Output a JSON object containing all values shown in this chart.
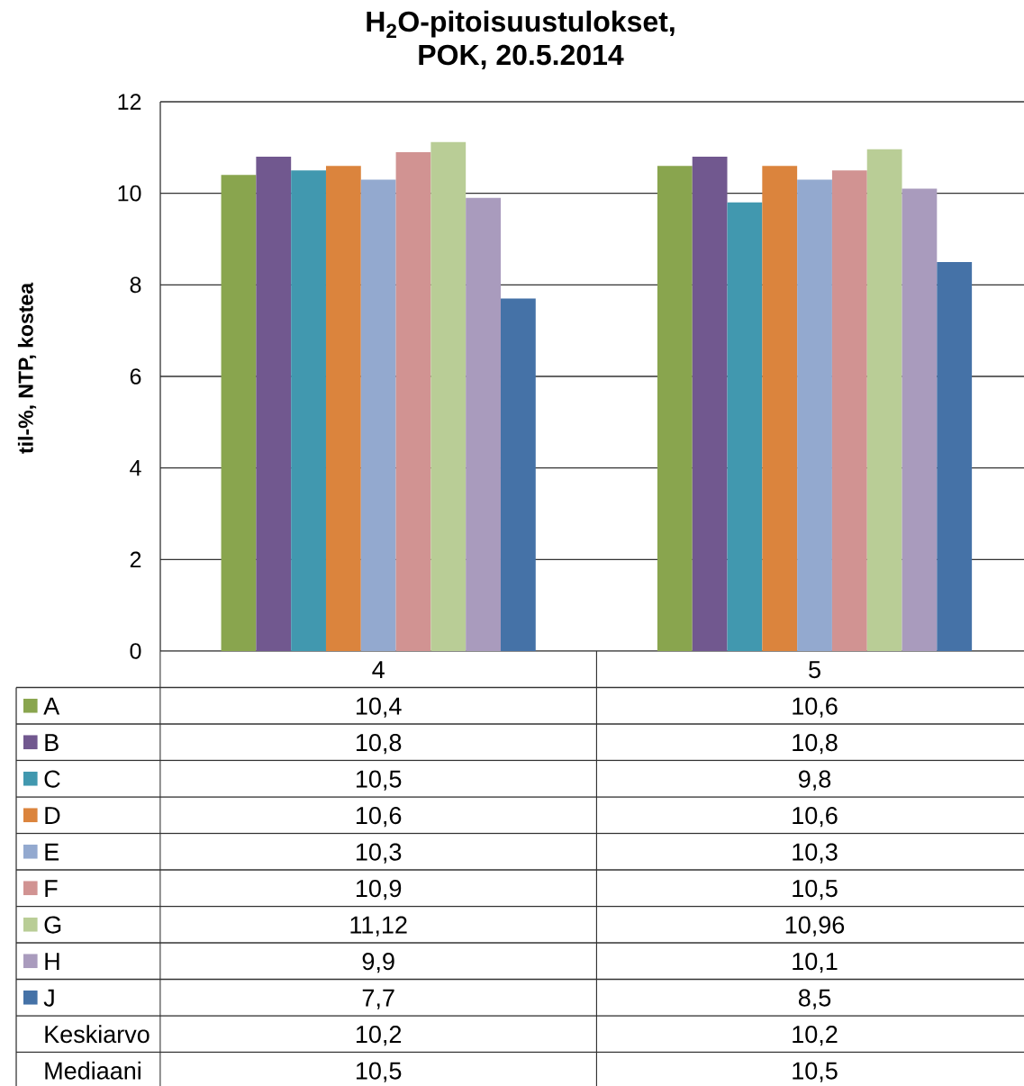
{
  "chart_data": {
    "type": "bar",
    "title": "H$_{2}$O-pitoisuustulokset,",
    "subtitle": "POK, 20.5.2014",
    "ylabel": "til-%, NTP, kostea",
    "categories": [
      "4",
      "5"
    ],
    "series": [
      {
        "name": "A",
        "color": "#89a54e",
        "values": [
          10.4,
          10.6
        ],
        "value_labels": [
          "10,4",
          "10,6"
        ]
      },
      {
        "name": "B",
        "color": "#71588f",
        "values": [
          10.8,
          10.8
        ],
        "value_labels": [
          "10,8",
          "10,8"
        ]
      },
      {
        "name": "C",
        "color": "#4198af",
        "values": [
          10.5,
          9.8
        ],
        "value_labels": [
          "10,5",
          "9,8"
        ]
      },
      {
        "name": "D",
        "color": "#db843d",
        "values": [
          10.6,
          10.6
        ],
        "value_labels": [
          "10,6",
          "10,6"
        ]
      },
      {
        "name": "E",
        "color": "#93a9cf",
        "values": [
          10.3,
          10.3
        ],
        "value_labels": [
          "10,3",
          "10,3"
        ]
      },
      {
        "name": "F",
        "color": "#d19392",
        "values": [
          10.9,
          10.5
        ],
        "value_labels": [
          "10,9",
          "10,5"
        ]
      },
      {
        "name": "G",
        "color": "#b9cd96",
        "values": [
          11.12,
          10.96
        ],
        "value_labels": [
          "11,12",
          "10,96"
        ]
      },
      {
        "name": "H",
        "color": "#a99bbd",
        "values": [
          9.9,
          10.1
        ],
        "value_labels": [
          "9,9",
          "10,1"
        ]
      },
      {
        "name": "J",
        "color": "#4572a7",
        "values": [
          7.7,
          8.5
        ],
        "value_labels": [
          "7,7",
          "8,5"
        ]
      }
    ],
    "ylim": [
      0,
      12
    ],
    "yticks": [
      0,
      2,
      4,
      6,
      8,
      10,
      12
    ],
    "grid": "y",
    "legend": "bottom",
    "annotations": [
      "Keskiarvo",
      "10,2",
      "10,2",
      "Mediaani",
      "10,5",
      "10,5"
    ]
  }
}
